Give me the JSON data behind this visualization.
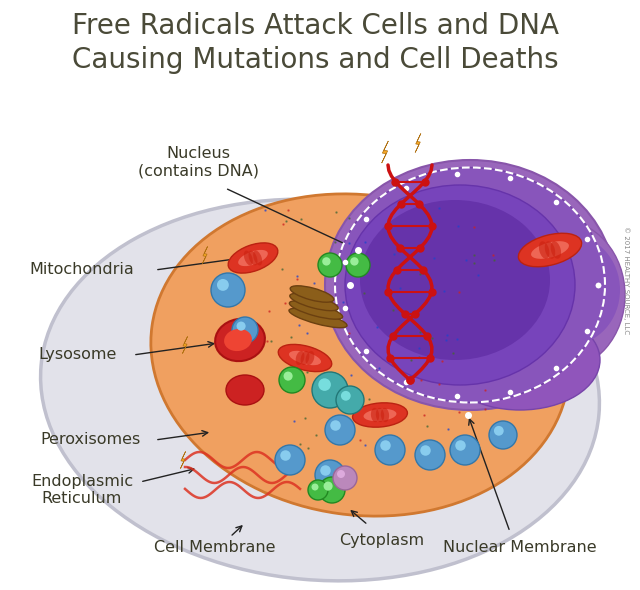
{
  "title_line1": "Free Radicals Attack Cells and DNA",
  "title_line2": "Causing Mutations and Cell Deaths",
  "title_color": "#4a4a38",
  "title_fontsize": 20,
  "bg_color": "#ffffff",
  "copyright": "© 2017 HEALTHY SOURCE, LLC",
  "label_color": "#3a3a28",
  "label_fontsize": 11.5,
  "arrow_color": "#222222",
  "lightning_color": "#f5a623",
  "cell_fill_color": "#dcdce6",
  "cell_edge_color": "#b8b8cc",
  "cyto_color": "#f0a060",
  "cyto_edge": "#d07830",
  "nuc_outer_color": "#8855bb",
  "nuc_mid_color": "#7744aa",
  "nuc_inner_color": "#6633aa",
  "nuc_dark_color": "#5522aa",
  "dna_color": "#cc1111"
}
